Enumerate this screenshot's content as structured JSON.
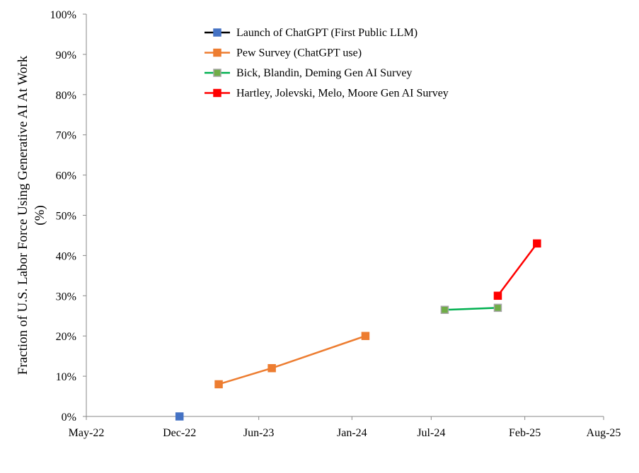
{
  "chart_data": {
    "type": "line",
    "title": "",
    "xlabel": "",
    "ylabel": [
      "Fraction of U.S. Labor Force Using Generative AI At Work",
      "(%)"
    ],
    "x_axis": {
      "type": "date",
      "range": [
        "2022-05-01",
        "2025-08-01"
      ],
      "ticks": [
        {
          "date": "2022-05-01",
          "label": "May-22"
        },
        {
          "date": "2022-12-01",
          "label": "Dec-22"
        },
        {
          "date": "2023-06-01",
          "label": "Jun-23"
        },
        {
          "date": "2024-01-01",
          "label": "Jan-24"
        },
        {
          "date": "2024-07-01",
          "label": "Jul-24"
        },
        {
          "date": "2025-02-01",
          "label": "Feb-25"
        },
        {
          "date": "2025-08-01",
          "label": "Aug-25"
        }
      ]
    },
    "y_axis": {
      "range": [
        0,
        100
      ],
      "ticks": [
        0,
        10,
        20,
        30,
        40,
        50,
        60,
        70,
        80,
        90,
        100
      ],
      "tick_labels": [
        "0%",
        "10%",
        "20%",
        "30%",
        "40%",
        "50%",
        "60%",
        "70%",
        "80%",
        "90%",
        "100%"
      ]
    },
    "grid": false,
    "legend_position": "top",
    "series": [
      {
        "name": "Launch of ChatGPT (First Public LLM)",
        "line_color": "#000000",
        "marker_color": "#4472C4",
        "marker_edge": "#4472C4",
        "points": [
          {
            "x": "2022-12-01",
            "y": 0
          }
        ]
      },
      {
        "name": "Pew Survey (ChatGPT use)",
        "line_color": "#ED7D31",
        "marker_color": "#ED7D31",
        "marker_edge": "#ED7D31",
        "points": [
          {
            "x": "2023-03-01",
            "y": 8
          },
          {
            "x": "2023-07-01",
            "y": 12
          },
          {
            "x": "2024-02-01",
            "y": 20
          }
        ]
      },
      {
        "name": "Bick, Blandin, Deming Gen AI Survey",
        "line_color": "#00B050",
        "marker_color": "#70AD47",
        "marker_edge": "#A5A5A5",
        "points": [
          {
            "x": "2024-08-01",
            "y": 26.5
          },
          {
            "x": "2024-12-01",
            "y": 27
          }
        ]
      },
      {
        "name": "Hartley, Jolevski, Melo, Moore Gen AI Survey",
        "line_color": "#FF0000",
        "marker_color": "#FF0000",
        "marker_edge": "#FF0000",
        "points": [
          {
            "x": "2024-12-01",
            "y": 30
          },
          {
            "x": "2025-03-01",
            "y": 43
          }
        ]
      }
    ]
  }
}
